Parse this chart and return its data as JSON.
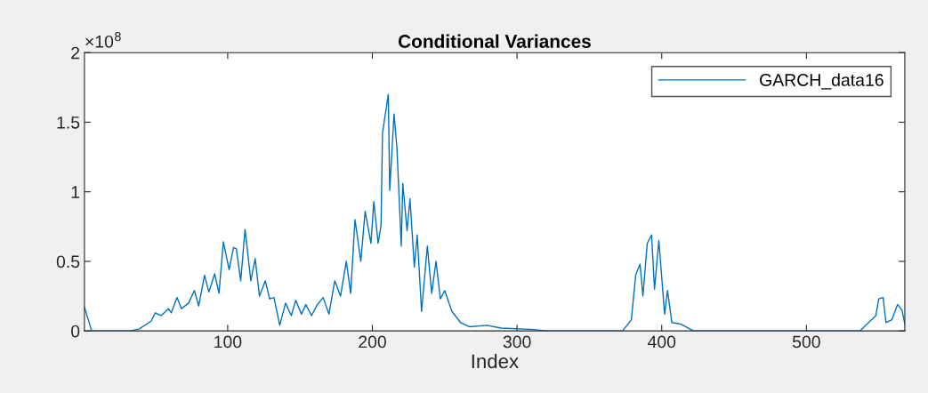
{
  "chart_data": {
    "type": "line",
    "title": "Conditional Variances",
    "xlabel": "Index",
    "annotations": [
      "×10$^{8}$"
    ],
    "xlim": [
      1,
      568
    ],
    "xticks": [
      100,
      200,
      300,
      400,
      500
    ],
    "ylim": [
      0,
      2
    ],
    "yticks": [
      0,
      0.5,
      1,
      1.5,
      2
    ],
    "legend": "top right",
    "grid": false,
    "series": [
      {
        "name": "GARCH_data16",
        "color": "#0072bd",
        "x": [
          1,
          6,
          33,
          39,
          47,
          50,
          54,
          59,
          61,
          65,
          68,
          73,
          77,
          80,
          84,
          87,
          91,
          94,
          97,
          101,
          104,
          106,
          109,
          112,
          116,
          119,
          122,
          126,
          129,
          132,
          136,
          140,
          144,
          147,
          151,
          154,
          158,
          162,
          166,
          170,
          174,
          178,
          182,
          185,
          188,
          192,
          195,
          199,
          201,
          204,
          206,
          207,
          211,
          212,
          215,
          217,
          220,
          221,
          224,
          226,
          229,
          231,
          234,
          238,
          241,
          244,
          247,
          250,
          255,
          261,
          267,
          279,
          289,
          312,
          320,
          342,
          373,
          379,
          382,
          385,
          387,
          390,
          393,
          395,
          398,
          402,
          404,
          407,
          413,
          422,
          537,
          543,
          548,
          550,
          553,
          555,
          559,
          563,
          566,
          568
        ],
        "values": [
          0.17,
          0,
          0,
          0.015,
          0.07,
          0.13,
          0.11,
          0.16,
          0.13,
          0.24,
          0.16,
          0.2,
          0.29,
          0.18,
          0.4,
          0.28,
          0.41,
          0.27,
          0.64,
          0.44,
          0.6,
          0.59,
          0.36,
          0.73,
          0.36,
          0.52,
          0.25,
          0.36,
          0.23,
          0.24,
          0.04,
          0.2,
          0.11,
          0.22,
          0.12,
          0.19,
          0.11,
          0.19,
          0.24,
          0.12,
          0.36,
          0.25,
          0.5,
          0.27,
          0.8,
          0.5,
          0.86,
          0.63,
          0.93,
          0.63,
          0.76,
          1.42,
          1.7,
          1.01,
          1.56,
          1.31,
          0.61,
          1.06,
          0.72,
          0.95,
          0.46,
          0.69,
          0.14,
          0.61,
          0.27,
          0.5,
          0.23,
          0.29,
          0.14,
          0.06,
          0.03,
          0.04,
          0.02,
          0.01,
          0,
          0,
          0,
          0.08,
          0.4,
          0.48,
          0.25,
          0.63,
          0.69,
          0.3,
          0.65,
          0.12,
          0.29,
          0.06,
          0.05,
          0,
          0,
          0.06,
          0.11,
          0.23,
          0.24,
          0.06,
          0.08,
          0.19,
          0.15,
          0.05
        ]
      }
    ]
  }
}
